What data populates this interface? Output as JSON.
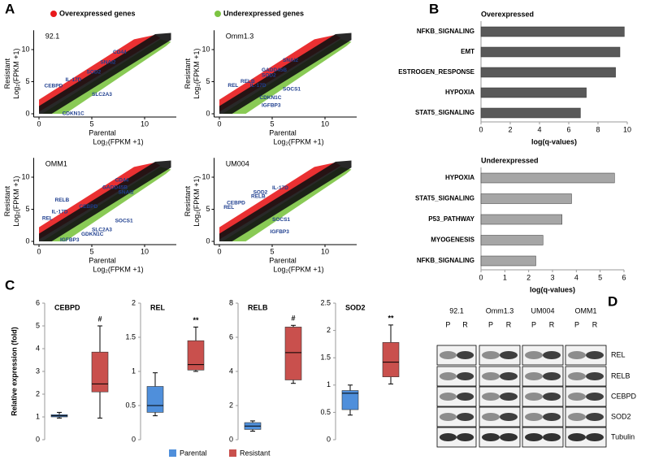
{
  "panel_labels": [
    "A",
    "B",
    "C",
    "D"
  ],
  "panel_a_legend": [
    {
      "name": "Overexpressed genes",
      "color": "#e8191c"
    },
    {
      "name": "Underexpressed genes",
      "color": "#7cc442"
    }
  ],
  "panel_c_legend": [
    {
      "name": "Parental",
      "color": "#4f8fdb"
    },
    {
      "name": "Resistant",
      "color": "#c9504d"
    }
  ],
  "chart_data": [
    {
      "type": "scatter",
      "title": "92.1",
      "xlabel": "Parental",
      "xlabel_unit": "Log₂(FPKM +1)",
      "ylabel": "Resistant",
      "ylabel_unit": "Log₂(FPKM +1)",
      "xlim": [
        -0.5,
        13
      ],
      "ylim": [
        -0.5,
        13
      ],
      "xticks": [
        0,
        5,
        10
      ],
      "yticks": [
        0,
        5,
        10
      ],
      "annotations": [
        "CD44",
        "SNAI2",
        "SOD2",
        "IL-17D",
        "CEBPD",
        "SLC2A3",
        "CDKN1C"
      ]
    },
    {
      "type": "scatter",
      "title": "Omm1.3",
      "xlabel": "Parental",
      "xlabel_unit": "Log₂(FPKM +1)",
      "ylabel": "Resistant",
      "ylabel_unit": "Log₂(FPKM +1)",
      "xlim": [
        -0.5,
        13
      ],
      "ylim": [
        -0.5,
        13
      ],
      "xticks": [
        0,
        5,
        10
      ],
      "yticks": [
        0,
        5,
        10
      ],
      "annotations": [
        "SNAI2",
        "GADD45B",
        "SOD2",
        "RELB",
        "REL",
        "IL-17D",
        "SOCS1",
        "CDKN1C",
        "IGFBP3"
      ]
    },
    {
      "type": "scatter",
      "title": "OMM1",
      "xlabel": "Parental",
      "xlabel_unit": "Log₂(FPKM +1)",
      "ylabel": "Resistant",
      "ylabel_unit": "Log₂(FPKM +1)",
      "xlim": [
        -0.5,
        13
      ],
      "ylim": [
        -0.5,
        13
      ],
      "xticks": [
        0,
        5,
        10
      ],
      "yticks": [
        0,
        5,
        10
      ],
      "annotations": [
        "CD44",
        "GADD45B",
        "SNAI2",
        "RELB",
        "CEBPD",
        "IL-17D",
        "REL",
        "SOCS1",
        "SLC2A3",
        "GDKN1C",
        "IGFBP3"
      ]
    },
    {
      "type": "scatter",
      "title": "UM004",
      "xlabel": "Parental",
      "xlabel_unit": "Log₂(FPKM +1)",
      "ylabel": "Resistant",
      "ylabel_unit": "Log₂(FPKM +1)",
      "xlim": [
        -0.5,
        13
      ],
      "ylim": [
        -0.5,
        13
      ],
      "xticks": [
        0,
        5,
        10
      ],
      "yticks": [
        0,
        5,
        10
      ],
      "annotations": [
        "IL-17D",
        "SOD2",
        "RELB",
        "CEBPD",
        "REL",
        "SOCS1",
        "IGFBP3"
      ]
    },
    {
      "type": "hbar",
      "title": "Overexpressed",
      "xlabel": "log(q-values)",
      "categories": [
        "NFKB_SIGNALING",
        "EMT",
        "ESTROGEN_RESPONSE",
        "HYPOXIA",
        "STAT5_SIGNALING"
      ],
      "values": [
        9.8,
        9.5,
        9.2,
        7.2,
        6.8
      ],
      "color": "#595959",
      "xlim": [
        0,
        10
      ],
      "xticks": [
        0,
        2,
        4,
        6,
        8,
        10
      ]
    },
    {
      "type": "hbar",
      "title": "Underexpressed",
      "xlabel": "log(q-values)",
      "categories": [
        "HYPOXIA",
        "STAT5_SIGNALING",
        "P53_PATHWAY",
        "MYOGENESIS",
        "NFKB_SIGNALING"
      ],
      "values": [
        5.6,
        3.8,
        3.4,
        2.6,
        2.3
      ],
      "color": "#a6a6a6",
      "xlim": [
        0,
        6
      ],
      "xticks": [
        0,
        1,
        2,
        3,
        4,
        5,
        6
      ]
    },
    {
      "type": "box",
      "title": "CEBPD",
      "ylabel": "Relative expression (fold)",
      "annotation": "#",
      "ylim": [
        0,
        6
      ],
      "yticks": [
        0,
        1,
        2,
        3,
        4,
        5,
        6
      ],
      "boxes": [
        {
          "min": 0.95,
          "q1": 1.0,
          "median": 1.05,
          "q3": 1.1,
          "max": 1.2
        },
        {
          "min": 0.95,
          "q1": 2.1,
          "median": 2.45,
          "q3": 3.85,
          "max": 5.0
        }
      ]
    },
    {
      "type": "box",
      "title": "REL",
      "annotation": "**",
      "ylim": [
        0,
        2
      ],
      "yticks": [
        0,
        0.5,
        1,
        1.5,
        2
      ],
      "boxes": [
        {
          "min": 0.35,
          "q1": 0.4,
          "median": 0.5,
          "q3": 0.78,
          "max": 0.98
        },
        {
          "min": 1.0,
          "q1": 1.02,
          "median": 1.1,
          "q3": 1.45,
          "max": 1.65
        }
      ]
    },
    {
      "type": "box",
      "title": "RELB",
      "annotation": "#",
      "ylim": [
        0,
        8
      ],
      "yticks": [
        0,
        2,
        4,
        6,
        8
      ],
      "boxes": [
        {
          "min": 0.5,
          "q1": 0.6,
          "median": 0.8,
          "q3": 1.0,
          "max": 1.1
        },
        {
          "min": 3.3,
          "q1": 3.5,
          "median": 5.1,
          "q3": 6.6,
          "max": 6.7
        }
      ]
    },
    {
      "type": "box",
      "title": "SOD2",
      "annotation": "**",
      "ylim": [
        0,
        2.5
      ],
      "yticks": [
        0,
        0.5,
        1,
        1.5,
        2,
        2.5
      ],
      "boxes": [
        {
          "min": 0.45,
          "q1": 0.55,
          "median": 0.85,
          "q3": 0.9,
          "max": 1.0
        },
        {
          "min": 1.02,
          "q1": 1.15,
          "median": 1.42,
          "q3": 1.78,
          "max": 2.1
        }
      ]
    }
  ],
  "blot": {
    "columns": [
      "92.1",
      "Omm1.3",
      "UM004",
      "OMM1"
    ],
    "lanes": [
      "P",
      "R"
    ],
    "rows": [
      "REL",
      "RELB",
      "CEBPD",
      "SOD2",
      "Tubulin"
    ]
  }
}
